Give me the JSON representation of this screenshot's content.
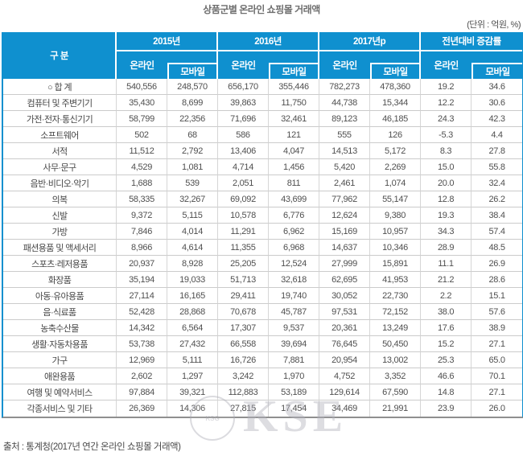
{
  "title": "상품군별 온라인 쇼핑몰 거래액",
  "unit_note": "(단위 : 억원, %)",
  "source": "출처 : 통계청(2017년 연간 온라인 쇼핑몰 거래액)",
  "watermark": {
    "large_text": "KSE",
    "stamp_text": "KSG"
  },
  "colors": {
    "header_blue": "#0f90cf",
    "body_text": "#4f4f4f",
    "grid_line": "#cbcbcb",
    "bottom_border": "#8f8f8f"
  },
  "chart_data": {
    "type": "table",
    "title": "상품군별 온라인 쇼핑몰 거래액",
    "unit": "(단위 : 억원, %)",
    "category_header": "구 분",
    "column_groups": [
      {
        "label": "2015년",
        "sub": [
          "온라인",
          "모바일"
        ]
      },
      {
        "label": "2016년",
        "sub": [
          "온라인",
          "모바일"
        ]
      },
      {
        "label": "2017년p",
        "sub": [
          "온라인",
          "모바일"
        ]
      },
      {
        "label": "전년대비 증감률",
        "sub": [
          "온라인",
          "모바일"
        ]
      }
    ],
    "rows": [
      {
        "category": "○ 합 계",
        "values": [
          "540,556",
          "248,570",
          "656,170",
          "355,446",
          "782,273",
          "478,360",
          "19.2",
          "34.6"
        ]
      },
      {
        "category": "컴퓨터 및 주변기기",
        "values": [
          "35,430",
          "8,699",
          "39,863",
          "11,750",
          "44,738",
          "15,344",
          "12.2",
          "30.6"
        ]
      },
      {
        "category": "가전·전자·통신기기",
        "values": [
          "58,799",
          "22,356",
          "71,696",
          "32,461",
          "89,123",
          "46,185",
          "24.3",
          "42.3"
        ]
      },
      {
        "category": "소프트웨어",
        "values": [
          "502",
          "68",
          "586",
          "121",
          "555",
          "126",
          "-5.3",
          "4.4"
        ]
      },
      {
        "category": "서적",
        "values": [
          "11,512",
          "2,792",
          "13,406",
          "4,047",
          "14,513",
          "5,172",
          "8.3",
          "27.8"
        ]
      },
      {
        "category": "사무·문구",
        "values": [
          "4,529",
          "1,081",
          "4,714",
          "1,456",
          "5,420",
          "2,269",
          "15.0",
          "55.8"
        ]
      },
      {
        "category": "음반·비디오·악기",
        "values": [
          "1,688",
          "539",
          "2,051",
          "811",
          "2,461",
          "1,074",
          "20.0",
          "32.4"
        ]
      },
      {
        "category": "의복",
        "values": [
          "58,335",
          "32,267",
          "69,092",
          "43,699",
          "77,962",
          "55,147",
          "12.8",
          "26.2"
        ]
      },
      {
        "category": "신발",
        "values": [
          "9,372",
          "5,115",
          "10,578",
          "6,776",
          "12,624",
          "9,380",
          "19.3",
          "38.4"
        ]
      },
      {
        "category": "가방",
        "values": [
          "7,846",
          "4,014",
          "11,291",
          "6,962",
          "15,169",
          "10,957",
          "34.3",
          "57.4"
        ]
      },
      {
        "category": "패션용품 및 액세서리",
        "values": [
          "8,966",
          "4,614",
          "11,355",
          "6,968",
          "14,637",
          "10,346",
          "28.9",
          "48.5"
        ]
      },
      {
        "category": "스포츠·레저용품",
        "values": [
          "20,937",
          "8,928",
          "25,205",
          "12,524",
          "27,999",
          "15,891",
          "11.1",
          "26.9"
        ]
      },
      {
        "category": "화장품",
        "values": [
          "35,194",
          "19,033",
          "51,713",
          "32,618",
          "62,695",
          "41,953",
          "21.2",
          "28.6"
        ]
      },
      {
        "category": "아동·유아용품",
        "values": [
          "27,114",
          "16,165",
          "29,411",
          "19,740",
          "30,052",
          "22,730",
          "2.2",
          "15.1"
        ]
      },
      {
        "category": "음·식료품",
        "values": [
          "52,428",
          "28,868",
          "70,678",
          "45,787",
          "97,531",
          "72,152",
          "38.0",
          "57.6"
        ]
      },
      {
        "category": "농축수산물",
        "values": [
          "14,342",
          "6,564",
          "17,307",
          "9,537",
          "20,361",
          "13,249",
          "17.6",
          "38.9"
        ]
      },
      {
        "category": "생활·자동차용품",
        "values": [
          "53,738",
          "27,432",
          "66,558",
          "39,694",
          "76,645",
          "50,450",
          "15.2",
          "27.1"
        ]
      },
      {
        "category": "가구",
        "values": [
          "12,969",
          "5,111",
          "16,726",
          "7,881",
          "20,954",
          "13,002",
          "25.3",
          "65.0"
        ]
      },
      {
        "category": "애완용품",
        "values": [
          "2,602",
          "1,297",
          "3,242",
          "1,970",
          "4,752",
          "3,352",
          "46.6",
          "70.1"
        ]
      },
      {
        "category": "여행 및 예약서비스",
        "values": [
          "97,884",
          "39,321",
          "112,883",
          "53,189",
          "129,614",
          "67,590",
          "14.8",
          "27.1"
        ]
      },
      {
        "category": "각종서비스 및 기타",
        "values": [
          "26,369",
          "14,306",
          "27,815",
          "17,454",
          "34,469",
          "21,991",
          "23.9",
          "26.0"
        ]
      }
    ],
    "source": "출처 : 통계청(2017년 연간 온라인 쇼핑몰 거래액)"
  }
}
